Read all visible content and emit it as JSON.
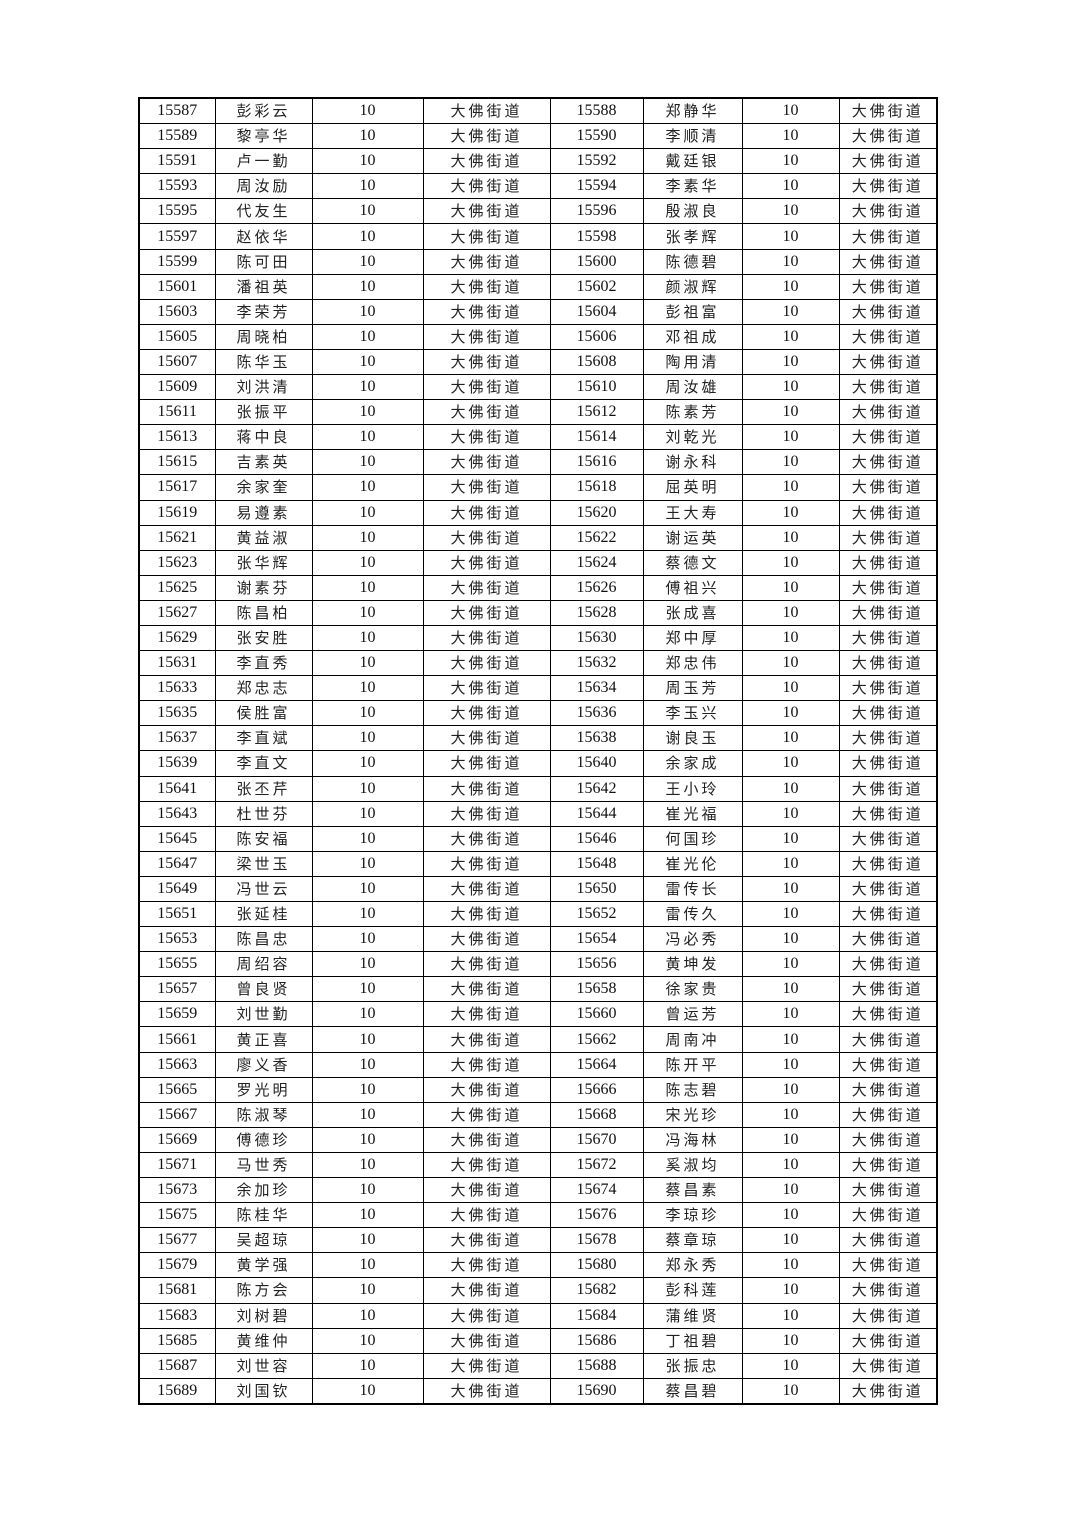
{
  "table": {
    "rows": [
      [
        "15587",
        "彭彩云",
        "10",
        "大佛街道",
        "15588",
        "郑静华",
        "10",
        "大佛街道"
      ],
      [
        "15589",
        "黎亭华",
        "10",
        "大佛街道",
        "15590",
        "李顺清",
        "10",
        "大佛街道"
      ],
      [
        "15591",
        "卢一勤",
        "10",
        "大佛街道",
        "15592",
        "戴廷银",
        "10",
        "大佛街道"
      ],
      [
        "15593",
        "周汝励",
        "10",
        "大佛街道",
        "15594",
        "李素华",
        "10",
        "大佛街道"
      ],
      [
        "15595",
        "代友生",
        "10",
        "大佛街道",
        "15596",
        "殷淑良",
        "10",
        "大佛街道"
      ],
      [
        "15597",
        "赵依华",
        "10",
        "大佛街道",
        "15598",
        "张孝辉",
        "10",
        "大佛街道"
      ],
      [
        "15599",
        "陈可田",
        "10",
        "大佛街道",
        "15600",
        "陈德碧",
        "10",
        "大佛街道"
      ],
      [
        "15601",
        "潘祖英",
        "10",
        "大佛街道",
        "15602",
        "颜淑辉",
        "10",
        "大佛街道"
      ],
      [
        "15603",
        "李荣芳",
        "10",
        "大佛街道",
        "15604",
        "彭祖富",
        "10",
        "大佛街道"
      ],
      [
        "15605",
        "周晓柏",
        "10",
        "大佛街道",
        "15606",
        "邓祖成",
        "10",
        "大佛街道"
      ],
      [
        "15607",
        "陈华玉",
        "10",
        "大佛街道",
        "15608",
        "陶用清",
        "10",
        "大佛街道"
      ],
      [
        "15609",
        "刘洪清",
        "10",
        "大佛街道",
        "15610",
        "周汝雄",
        "10",
        "大佛街道"
      ],
      [
        "15611",
        "张振平",
        "10",
        "大佛街道",
        "15612",
        "陈素芳",
        "10",
        "大佛街道"
      ],
      [
        "15613",
        "蒋中良",
        "10",
        "大佛街道",
        "15614",
        "刘乾光",
        "10",
        "大佛街道"
      ],
      [
        "15615",
        "吉素英",
        "10",
        "大佛街道",
        "15616",
        "谢永科",
        "10",
        "大佛街道"
      ],
      [
        "15617",
        "余家奎",
        "10",
        "大佛街道",
        "15618",
        "屈英明",
        "10",
        "大佛街道"
      ],
      [
        "15619",
        "易遵素",
        "10",
        "大佛街道",
        "15620",
        "王大寿",
        "10",
        "大佛街道"
      ],
      [
        "15621",
        "黄益淑",
        "10",
        "大佛街道",
        "15622",
        "谢运英",
        "10",
        "大佛街道"
      ],
      [
        "15623",
        "张华辉",
        "10",
        "大佛街道",
        "15624",
        "蔡德文",
        "10",
        "大佛街道"
      ],
      [
        "15625",
        "谢素芬",
        "10",
        "大佛街道",
        "15626",
        "傅祖兴",
        "10",
        "大佛街道"
      ],
      [
        "15627",
        "陈昌柏",
        "10",
        "大佛街道",
        "15628",
        "张成喜",
        "10",
        "大佛街道"
      ],
      [
        "15629",
        "张安胜",
        "10",
        "大佛街道",
        "15630",
        "郑中厚",
        "10",
        "大佛街道"
      ],
      [
        "15631",
        "李直秀",
        "10",
        "大佛街道",
        "15632",
        "郑忠伟",
        "10",
        "大佛街道"
      ],
      [
        "15633",
        "郑忠志",
        "10",
        "大佛街道",
        "15634",
        "周玉芳",
        "10",
        "大佛街道"
      ],
      [
        "15635",
        "侯胜富",
        "10",
        "大佛街道",
        "15636",
        "李玉兴",
        "10",
        "大佛街道"
      ],
      [
        "15637",
        "李直斌",
        "10",
        "大佛街道",
        "15638",
        "谢良玉",
        "10",
        "大佛街道"
      ],
      [
        "15639",
        "李直文",
        "10",
        "大佛街道",
        "15640",
        "余家成",
        "10",
        "大佛街道"
      ],
      [
        "15641",
        "张丕芹",
        "10",
        "大佛街道",
        "15642",
        "王小玲",
        "10",
        "大佛街道"
      ],
      [
        "15643",
        "杜世芬",
        "10",
        "大佛街道",
        "15644",
        "崔光福",
        "10",
        "大佛街道"
      ],
      [
        "15645",
        "陈安福",
        "10",
        "大佛街道",
        "15646",
        "何国珍",
        "10",
        "大佛街道"
      ],
      [
        "15647",
        "梁世玉",
        "10",
        "大佛街道",
        "15648",
        "崔光伦",
        "10",
        "大佛街道"
      ],
      [
        "15649",
        "冯世云",
        "10",
        "大佛街道",
        "15650",
        "雷传长",
        "10",
        "大佛街道"
      ],
      [
        "15651",
        "张延桂",
        "10",
        "大佛街道",
        "15652",
        "雷传久",
        "10",
        "大佛街道"
      ],
      [
        "15653",
        "陈昌忠",
        "10",
        "大佛街道",
        "15654",
        "冯必秀",
        "10",
        "大佛街道"
      ],
      [
        "15655",
        "周绍容",
        "10",
        "大佛街道",
        "15656",
        "黄坤发",
        "10",
        "大佛街道"
      ],
      [
        "15657",
        "曾良贤",
        "10",
        "大佛街道",
        "15658",
        "徐家贵",
        "10",
        "大佛街道"
      ],
      [
        "15659",
        "刘世勤",
        "10",
        "大佛街道",
        "15660",
        "曾运芳",
        "10",
        "大佛街道"
      ],
      [
        "15661",
        "黄正喜",
        "10",
        "大佛街道",
        "15662",
        "周南冲",
        "10",
        "大佛街道"
      ],
      [
        "15663",
        "廖义香",
        "10",
        "大佛街道",
        "15664",
        "陈开平",
        "10",
        "大佛街道"
      ],
      [
        "15665",
        "罗光明",
        "10",
        "大佛街道",
        "15666",
        "陈志碧",
        "10",
        "大佛街道"
      ],
      [
        "15667",
        "陈淑琴",
        "10",
        "大佛街道",
        "15668",
        "宋光珍",
        "10",
        "大佛街道"
      ],
      [
        "15669",
        "傅德珍",
        "10",
        "大佛街道",
        "15670",
        "冯海林",
        "10",
        "大佛街道"
      ],
      [
        "15671",
        "马世秀",
        "10",
        "大佛街道",
        "15672",
        "奚淑均",
        "10",
        "大佛街道"
      ],
      [
        "15673",
        "余加珍",
        "10",
        "大佛街道",
        "15674",
        "蔡昌素",
        "10",
        "大佛街道"
      ],
      [
        "15675",
        "陈桂华",
        "10",
        "大佛街道",
        "15676",
        "李琼珍",
        "10",
        "大佛街道"
      ],
      [
        "15677",
        "吴超琼",
        "10",
        "大佛街道",
        "15678",
        "蔡章琼",
        "10",
        "大佛街道"
      ],
      [
        "15679",
        "黄学强",
        "10",
        "大佛街道",
        "15680",
        "郑永秀",
        "10",
        "大佛街道"
      ],
      [
        "15681",
        "陈方会",
        "10",
        "大佛街道",
        "15682",
        "彭科莲",
        "10",
        "大佛街道"
      ],
      [
        "15683",
        "刘树碧",
        "10",
        "大佛街道",
        "15684",
        "蒲维贤",
        "10",
        "大佛街道"
      ],
      [
        "15685",
        "黄维仲",
        "10",
        "大佛街道",
        "15686",
        "丁祖碧",
        "10",
        "大佛街道"
      ],
      [
        "15687",
        "刘世容",
        "10",
        "大佛街道",
        "15688",
        "张振忠",
        "10",
        "大佛街道"
      ],
      [
        "15689",
        "刘国钦",
        "10",
        "大佛街道",
        "15690",
        "蔡昌碧",
        "10",
        "大佛街道"
      ]
    ]
  }
}
